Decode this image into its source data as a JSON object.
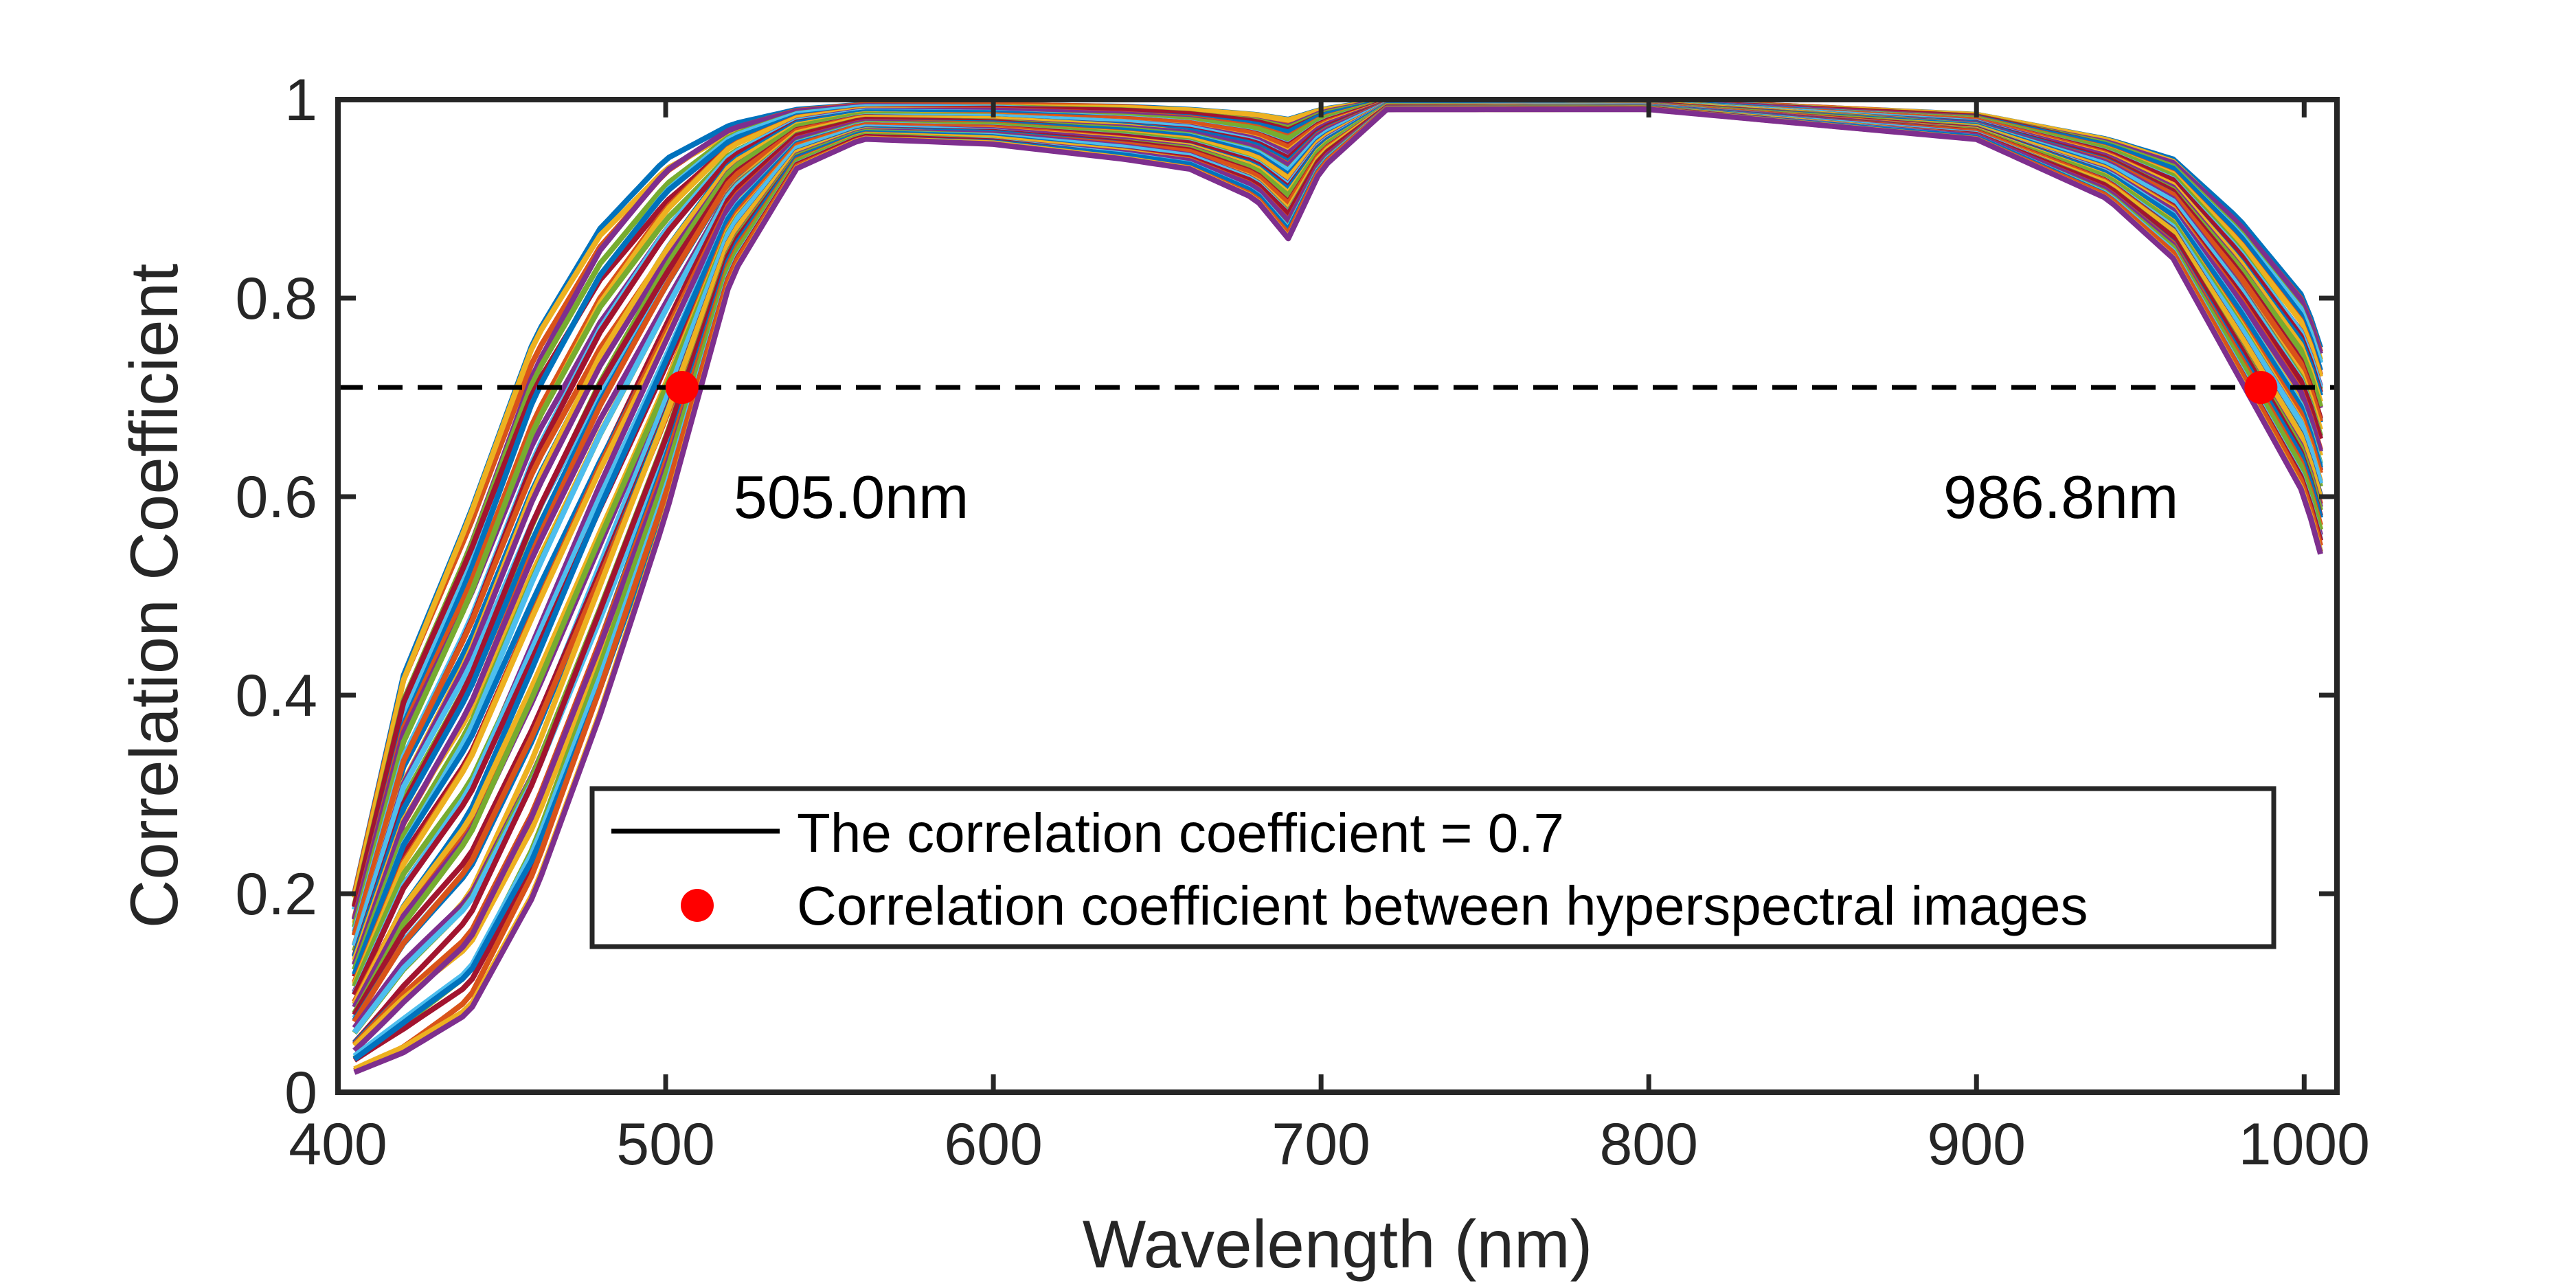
{
  "chart_data": {
    "type": "line",
    "xlabel": "Wavelength (nm)",
    "ylabel": "Correlation Coefficient",
    "xlim": [
      400,
      1010
    ],
    "ylim": [
      0,
      1
    ],
    "xticks": [
      400,
      500,
      600,
      700,
      800,
      900,
      1000
    ],
    "yticks": [
      0,
      0.2,
      0.4,
      0.6,
      0.8,
      1
    ],
    "xtick_labels": [
      "400",
      "500",
      "600",
      "700",
      "800",
      "900",
      "1000"
    ],
    "ytick_labels": [
      "0",
      "0.2",
      "0.4",
      "0.6",
      "0.8",
      "1"
    ],
    "grid": false,
    "threshold": {
      "y": 0.71,
      "style": "dashed",
      "color": "#000000"
    },
    "highlight_points": [
      {
        "x": 505.0,
        "y": 0.71,
        "label": "505.0nm"
      },
      {
        "x": 986.8,
        "y": 0.71,
        "label": "986.8nm"
      }
    ],
    "point_color": "#ff0000",
    "legend": {
      "position": "lower-center",
      "entries": [
        {
          "marker": "line",
          "label": "The correlation coefficient = 0.7"
        },
        {
          "marker": "dot",
          "label": "Correlation coefficient between hyperspectral images"
        }
      ]
    },
    "series_count": 60,
    "series_colors": [
      "#0072BD",
      "#D95319",
      "#EDB120",
      "#7E2F8E",
      "#77AC30",
      "#4DBEEE",
      "#A2142F"
    ],
    "envelope": {
      "x": [
        405,
        420,
        440,
        460,
        480,
        500,
        520,
        540,
        560,
        600,
        640,
        660,
        680,
        690,
        700,
        720,
        800,
        900,
        940,
        960,
        980,
        1000,
        1005
      ],
      "upper": [
        0.2,
        0.42,
        0.58,
        0.76,
        0.87,
        0.94,
        0.975,
        0.99,
        0.995,
        0.995,
        0.993,
        0.99,
        0.985,
        0.98,
        0.99,
        1.0,
        1.0,
        0.985,
        0.96,
        0.94,
        0.88,
        0.8,
        0.75
      ],
      "lower": [
        0.02,
        0.04,
        0.08,
        0.2,
        0.38,
        0.58,
        0.82,
        0.93,
        0.96,
        0.955,
        0.94,
        0.93,
        0.9,
        0.86,
        0.93,
        0.99,
        0.99,
        0.96,
        0.9,
        0.84,
        0.72,
        0.6,
        0.54
      ]
    }
  }
}
